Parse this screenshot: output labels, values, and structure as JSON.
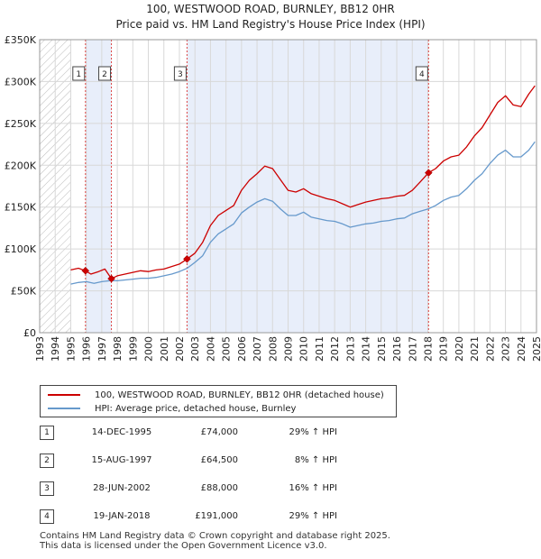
{
  "header": {
    "title_line1": "100, WESTWOOD ROAD, BURNLEY, BB12 0HR",
    "title_line2": "Price paid vs. HM Land Registry's House Price Index (HPI)"
  },
  "colors": {
    "property": "#cc0000",
    "hpi": "#6699cc",
    "shade": "#e8eefa",
    "grid": "#d8d8d8",
    "marker_line": "#dd4444"
  },
  "chart_data": {
    "type": "line",
    "ylim": [
      0,
      350000
    ],
    "y_ticks": [
      {
        "value": 0,
        "label": "£0"
      },
      {
        "value": 50000,
        "label": "£50K"
      },
      {
        "value": 100000,
        "label": "£100K"
      },
      {
        "value": 150000,
        "label": "£150K"
      },
      {
        "value": 200000,
        "label": "£200K"
      },
      {
        "value": 250000,
        "label": "£250K"
      },
      {
        "value": 300000,
        "label": "£300K"
      },
      {
        "value": 350000,
        "label": "£350K"
      }
    ],
    "xlim": [
      1993,
      2025
    ],
    "x_ticks": [
      "1993",
      "1994",
      "1995",
      "1996",
      "1997",
      "1998",
      "1999",
      "2000",
      "2001",
      "2002",
      "2003",
      "2004",
      "2005",
      "2006",
      "2007",
      "2008",
      "2009",
      "2010",
      "2011",
      "2012",
      "2013",
      "2014",
      "2015",
      "2016",
      "2017",
      "2018",
      "2019",
      "2020",
      "2021",
      "2022",
      "2023",
      "2024",
      "2025"
    ],
    "hatch_until": 1995.0,
    "shaded_ranges": [
      [
        1995.95,
        1997.62
      ],
      [
        2002.49,
        2018.05
      ]
    ],
    "series": [
      {
        "name": "100, WESTWOOD ROAD, BURNLEY, BB12 0HR (detached house)",
        "color": "#cc0000",
        "points": [
          [
            1995.0,
            75000
          ],
          [
            1995.5,
            77000
          ],
          [
            1995.95,
            74000
          ],
          [
            1996.3,
            70000
          ],
          [
            1996.8,
            73000
          ],
          [
            1997.2,
            76000
          ],
          [
            1997.62,
            64500
          ],
          [
            1998.0,
            68000
          ],
          [
            1998.5,
            70000
          ],
          [
            1999.0,
            72000
          ],
          [
            1999.5,
            74000
          ],
          [
            2000.0,
            73000
          ],
          [
            2000.5,
            75000
          ],
          [
            2001.0,
            76000
          ],
          [
            2001.5,
            79000
          ],
          [
            2002.0,
            82000
          ],
          [
            2002.49,
            88000
          ],
          [
            2003.0,
            95000
          ],
          [
            2003.5,
            108000
          ],
          [
            2004.0,
            128000
          ],
          [
            2004.5,
            140000
          ],
          [
            2005.0,
            146000
          ],
          [
            2005.5,
            152000
          ],
          [
            2006.0,
            170000
          ],
          [
            2006.5,
            182000
          ],
          [
            2007.0,
            190000
          ],
          [
            2007.5,
            199000
          ],
          [
            2008.0,
            196000
          ],
          [
            2008.5,
            183000
          ],
          [
            2009.0,
            170000
          ],
          [
            2009.5,
            168000
          ],
          [
            2010.0,
            172000
          ],
          [
            2010.5,
            166000
          ],
          [
            2011.0,
            163000
          ],
          [
            2011.5,
            160000
          ],
          [
            2012.0,
            158000
          ],
          [
            2012.5,
            154000
          ],
          [
            2013.0,
            150000
          ],
          [
            2013.5,
            153000
          ],
          [
            2014.0,
            156000
          ],
          [
            2014.5,
            158000
          ],
          [
            2015.0,
            160000
          ],
          [
            2015.5,
            161000
          ],
          [
            2016.0,
            163000
          ],
          [
            2016.5,
            164000
          ],
          [
            2017.0,
            170000
          ],
          [
            2017.5,
            180000
          ],
          [
            2018.05,
            191000
          ],
          [
            2018.5,
            196000
          ],
          [
            2019.0,
            205000
          ],
          [
            2019.5,
            210000
          ],
          [
            2020.0,
            212000
          ],
          [
            2020.5,
            222000
          ],
          [
            2021.0,
            235000
          ],
          [
            2021.5,
            245000
          ],
          [
            2022.0,
            260000
          ],
          [
            2022.5,
            275000
          ],
          [
            2023.0,
            283000
          ],
          [
            2023.5,
            272000
          ],
          [
            2024.0,
            270000
          ],
          [
            2024.5,
            285000
          ],
          [
            2024.9,
            295000
          ]
        ]
      },
      {
        "name": "HPI: Average price, detached house, Burnley",
        "color": "#6699cc",
        "points": [
          [
            1995.0,
            58000
          ],
          [
            1995.5,
            60000
          ],
          [
            1996.0,
            61000
          ],
          [
            1996.5,
            59000
          ],
          [
            1997.0,
            61000
          ],
          [
            1997.5,
            62000
          ],
          [
            1998.0,
            62000
          ],
          [
            1998.5,
            63000
          ],
          [
            1999.0,
            64000
          ],
          [
            1999.5,
            65000
          ],
          [
            2000.0,
            65000
          ],
          [
            2000.5,
            66000
          ],
          [
            2001.0,
            68000
          ],
          [
            2001.5,
            70000
          ],
          [
            2002.0,
            73000
          ],
          [
            2002.5,
            77000
          ],
          [
            2003.0,
            84000
          ],
          [
            2003.5,
            92000
          ],
          [
            2004.0,
            108000
          ],
          [
            2004.5,
            118000
          ],
          [
            2005.0,
            124000
          ],
          [
            2005.5,
            130000
          ],
          [
            2006.0,
            143000
          ],
          [
            2006.5,
            150000
          ],
          [
            2007.0,
            156000
          ],
          [
            2007.5,
            160000
          ],
          [
            2008.0,
            157000
          ],
          [
            2008.5,
            148000
          ],
          [
            2009.0,
            140000
          ],
          [
            2009.5,
            140000
          ],
          [
            2010.0,
            144000
          ],
          [
            2010.5,
            138000
          ],
          [
            2011.0,
            136000
          ],
          [
            2011.5,
            134000
          ],
          [
            2012.0,
            133000
          ],
          [
            2012.5,
            130000
          ],
          [
            2013.0,
            126000
          ],
          [
            2013.5,
            128000
          ],
          [
            2014.0,
            130000
          ],
          [
            2014.5,
            131000
          ],
          [
            2015.0,
            133000
          ],
          [
            2015.5,
            134000
          ],
          [
            2016.0,
            136000
          ],
          [
            2016.5,
            137000
          ],
          [
            2017.0,
            142000
          ],
          [
            2017.5,
            145000
          ],
          [
            2018.05,
            148000
          ],
          [
            2018.5,
            152000
          ],
          [
            2019.0,
            158000
          ],
          [
            2019.5,
            162000
          ],
          [
            2020.0,
            164000
          ],
          [
            2020.5,
            172000
          ],
          [
            2021.0,
            182000
          ],
          [
            2021.5,
            190000
          ],
          [
            2022.0,
            202000
          ],
          [
            2022.5,
            212000
          ],
          [
            2023.0,
            218000
          ],
          [
            2023.5,
            210000
          ],
          [
            2024.0,
            210000
          ],
          [
            2024.5,
            218000
          ],
          [
            2024.9,
            228000
          ]
        ]
      }
    ],
    "sales": [
      {
        "id": "1",
        "x": 1995.95,
        "value": 74000
      },
      {
        "id": "2",
        "x": 1997.62,
        "value": 64500
      },
      {
        "id": "3",
        "x": 2002.49,
        "value": 88000
      },
      {
        "id": "4",
        "x": 2018.05,
        "value": 191000
      }
    ]
  },
  "legend": {
    "property_label": "100, WESTWOOD ROAD, BURNLEY, BB12 0HR (detached house)",
    "hpi_label": "HPI: Average price, detached house, Burnley"
  },
  "sales_table": [
    {
      "id": "1",
      "date": "14-DEC-1995",
      "price": "£74,000",
      "hpi": "29% ↑ HPI"
    },
    {
      "id": "2",
      "date": "15-AUG-1997",
      "price": "£64,500",
      "hpi": "8% ↑ HPI"
    },
    {
      "id": "3",
      "date": "28-JUN-2002",
      "price": "£88,000",
      "hpi": "16% ↑ HPI"
    },
    {
      "id": "4",
      "date": "19-JAN-2018",
      "price": "£191,000",
      "hpi": "29% ↑ HPI"
    }
  ],
  "footer": {
    "line1": "Contains HM Land Registry data © Crown copyright and database right 2025.",
    "line2": "This data is licensed under the Open Government Licence v3.0."
  }
}
